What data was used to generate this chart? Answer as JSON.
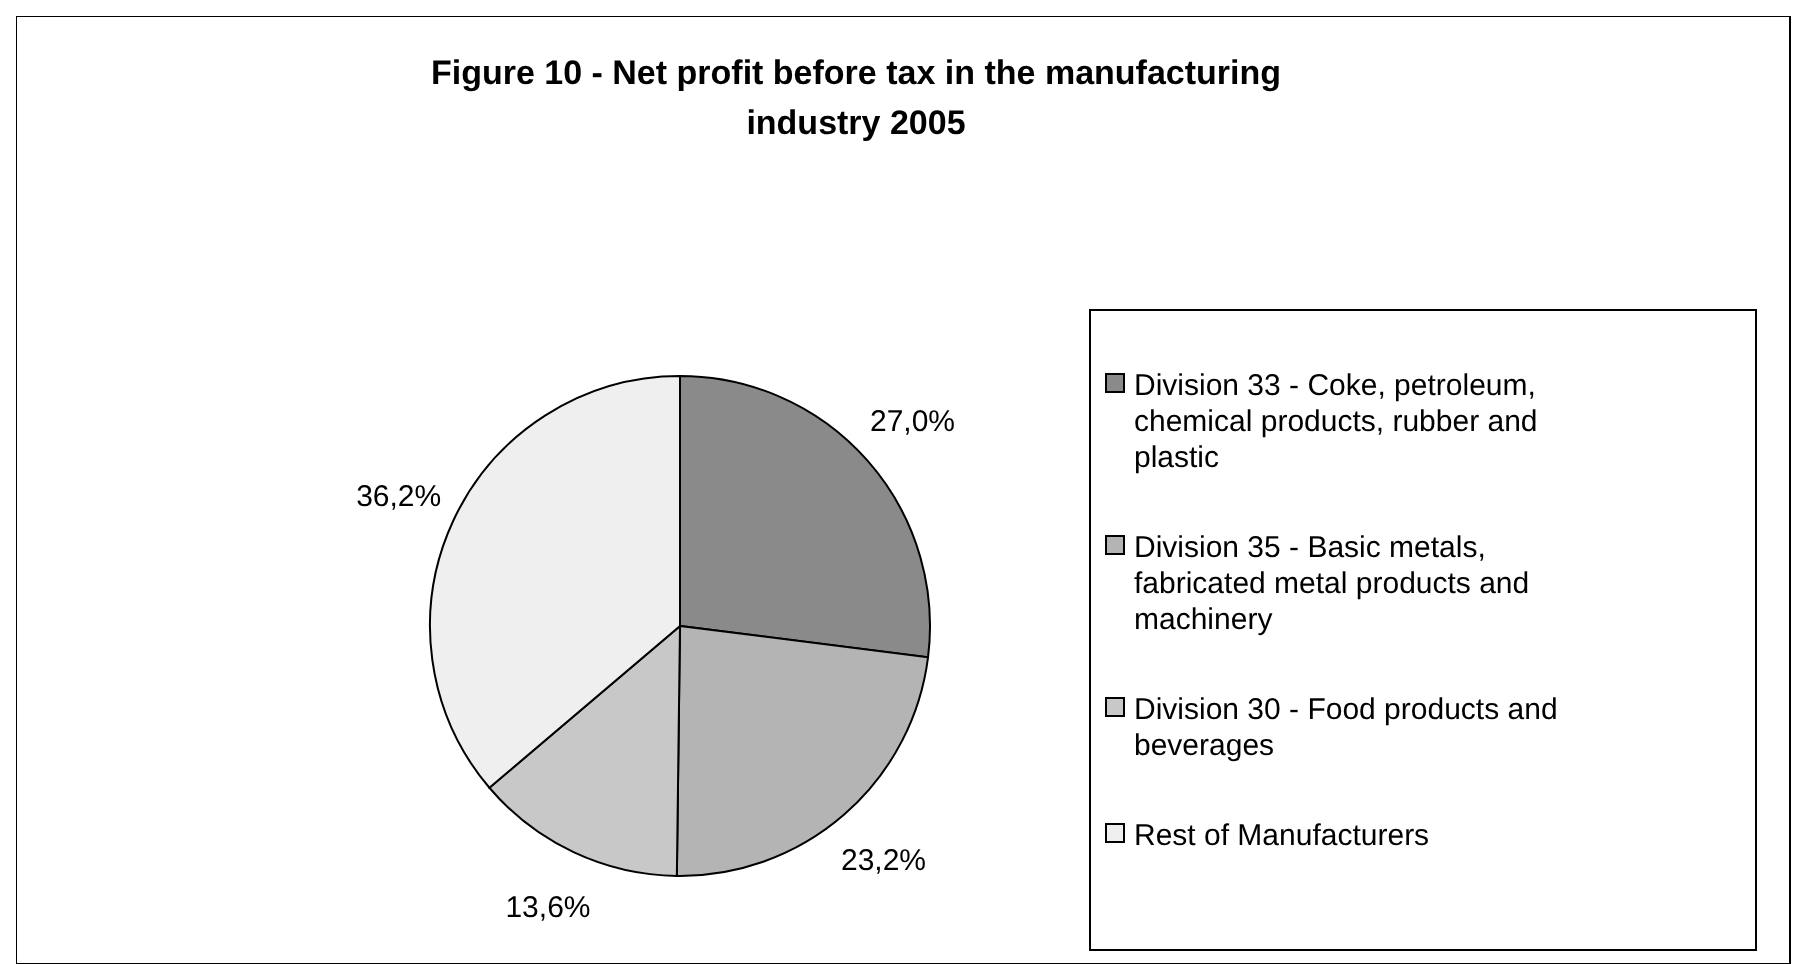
{
  "chart_data": {
    "type": "pie",
    "title": "Figure 10 - Net profit before tax in the manufacturing industry 2005",
    "categories": [
      "Division 33 - Coke, petroleum, chemical products, rubber and plastic",
      "Division 35 - Basic metals, fabricated metal products and machinery",
      "Division 30 - Food products and beverages",
      "Rest of Manufacturers"
    ],
    "values": [
      27.0,
      23.2,
      13.6,
      36.2
    ],
    "value_labels": [
      "27,0%",
      "23,2%",
      "13,6%",
      "36,2%"
    ],
    "colors": [
      "#8a8a8a",
      "#b4b4b4",
      "#c8c8c8",
      "#efefef"
    ],
    "legend": "right"
  }
}
